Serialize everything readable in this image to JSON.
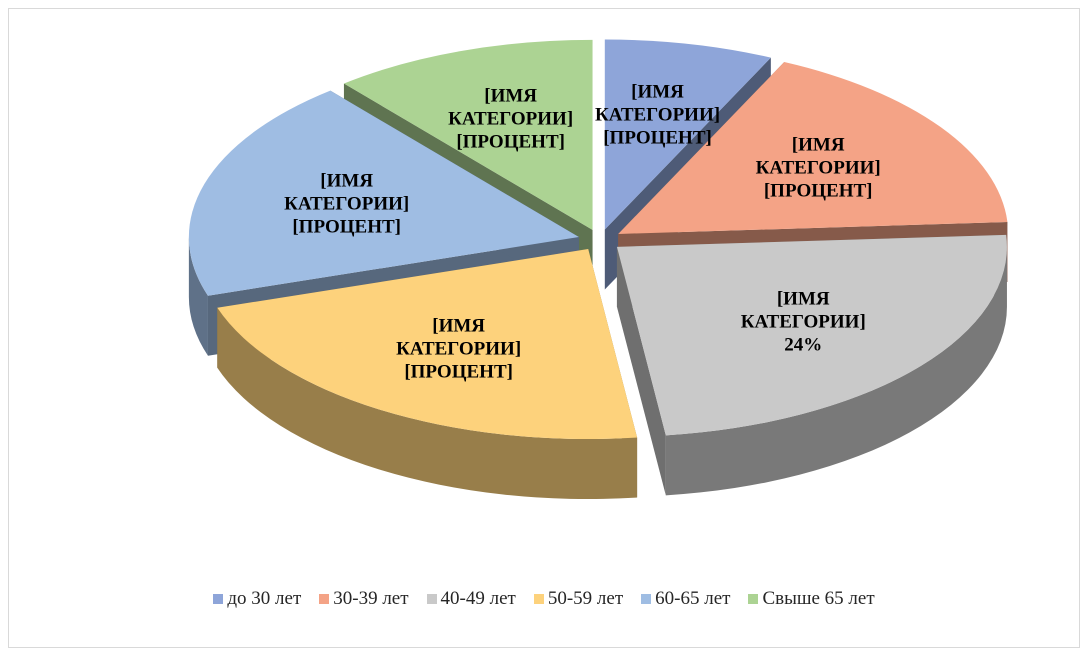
{
  "chart_data": {
    "type": "pie3d",
    "categories": [
      "до 30 лет",
      "30-39 лет",
      "40-49 лет",
      "50-59 лет",
      "60-65 лет",
      "Свыше 65 лет"
    ],
    "values": [
      7,
      17,
      24,
      22,
      19,
      11
    ],
    "label_names": [
      "[ИМЯ КАТЕГОРИИ]",
      "[ИМЯ КАТЕГОРИИ]",
      "[ИМЯ КАТЕГОРИИ]",
      "[ИМЯ КАТЕГОРИИ]",
      "[ИМЯ КАТЕГОРИИ]",
      "[ИМЯ КАТЕГОРИИ]"
    ],
    "value_labels": [
      "[ПРОЦЕНТ]",
      "[ПРОЦЕНТ]",
      "24%",
      "[ПРОЦЕНТ]",
      "[ПРОЦЕНТ]",
      "[ПРОЦЕНТ]"
    ],
    "colors": [
      "#8ea5d9",
      "#f4a386",
      "#c9c9c9",
      "#fdd27c",
      "#9fbde3",
      "#acd393"
    ],
    "legend": "bottom"
  }
}
